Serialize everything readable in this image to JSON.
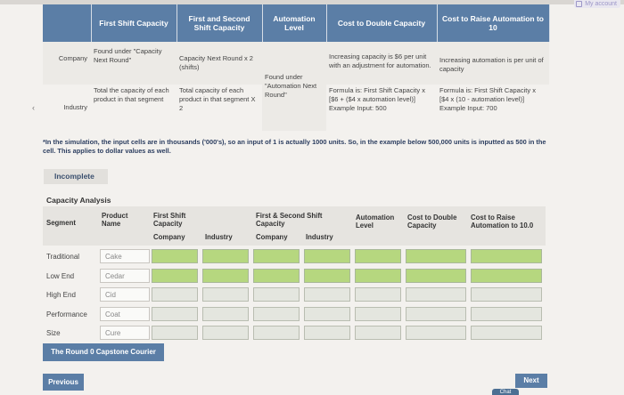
{
  "account": {
    "label": "My account"
  },
  "info_table": {
    "headers": {
      "first_shift": "First Shift Capacity",
      "first_second": "First and Second Shift Capacity",
      "automation": "Automation Level",
      "cost_double": "Cost to Double Capacity",
      "cost_raise": "Cost to Raise Automation to 10"
    },
    "company": {
      "label": "Company",
      "first_shift": "Found under \"Capacity Next Round\"",
      "first_second": "Capacity Next Round x 2 (shifts)",
      "automation": "Found under \"Automation Next Round\"",
      "cost_double": "Increasing capacity is $6 per unit with an adjustment for automation.",
      "cost_raise": "Increasing automation is per unit of capacity"
    },
    "industry": {
      "label": "Industry",
      "first_shift": "Total the capacity of each product in that segment",
      "first_second": "Total capacity of each product in that segment X 2",
      "cost_double": "Formula is: First Shift Capacity x [$6 + ($4 x automation level)] Example Input: 500",
      "cost_raise": "Formula is: First Shift Capacity x [$4 x (10 - automation level)] Example Input: 700"
    }
  },
  "note": "*In the simulation, the input cells are in thousands ('000's), so an input of 1 is actually 1000 units. So, in the example below 500,000 units is inputted as 500 in the cell. This applies to dollar values as well.",
  "status": {
    "label": "Incomplete"
  },
  "analysis": {
    "title": "Capacity Analysis",
    "headers": {
      "segment": "Segment",
      "product_name": "Product Name",
      "first_shift": "First Shift Capacity",
      "first_second": "First & Second Shift Capacity",
      "automation": "Automation Level",
      "cost_double": "Cost to Double Capacity",
      "cost_raise": "Cost to Raise Automation to 10.0",
      "company": "Company",
      "industry": "Industry"
    },
    "rows": [
      {
        "segment": "Traditional",
        "product": "Cake"
      },
      {
        "segment": "Low End",
        "product": "Cedar"
      },
      {
        "segment": "High End",
        "product": "Cid"
      },
      {
        "segment": "Performance",
        "product": "Coat"
      },
      {
        "segment": "Size",
        "product": "Cure"
      }
    ]
  },
  "buttons": {
    "courier": "The Round 0 Capstone Courier",
    "previous": "Previous",
    "next": "Next",
    "chat": "Chat"
  }
}
